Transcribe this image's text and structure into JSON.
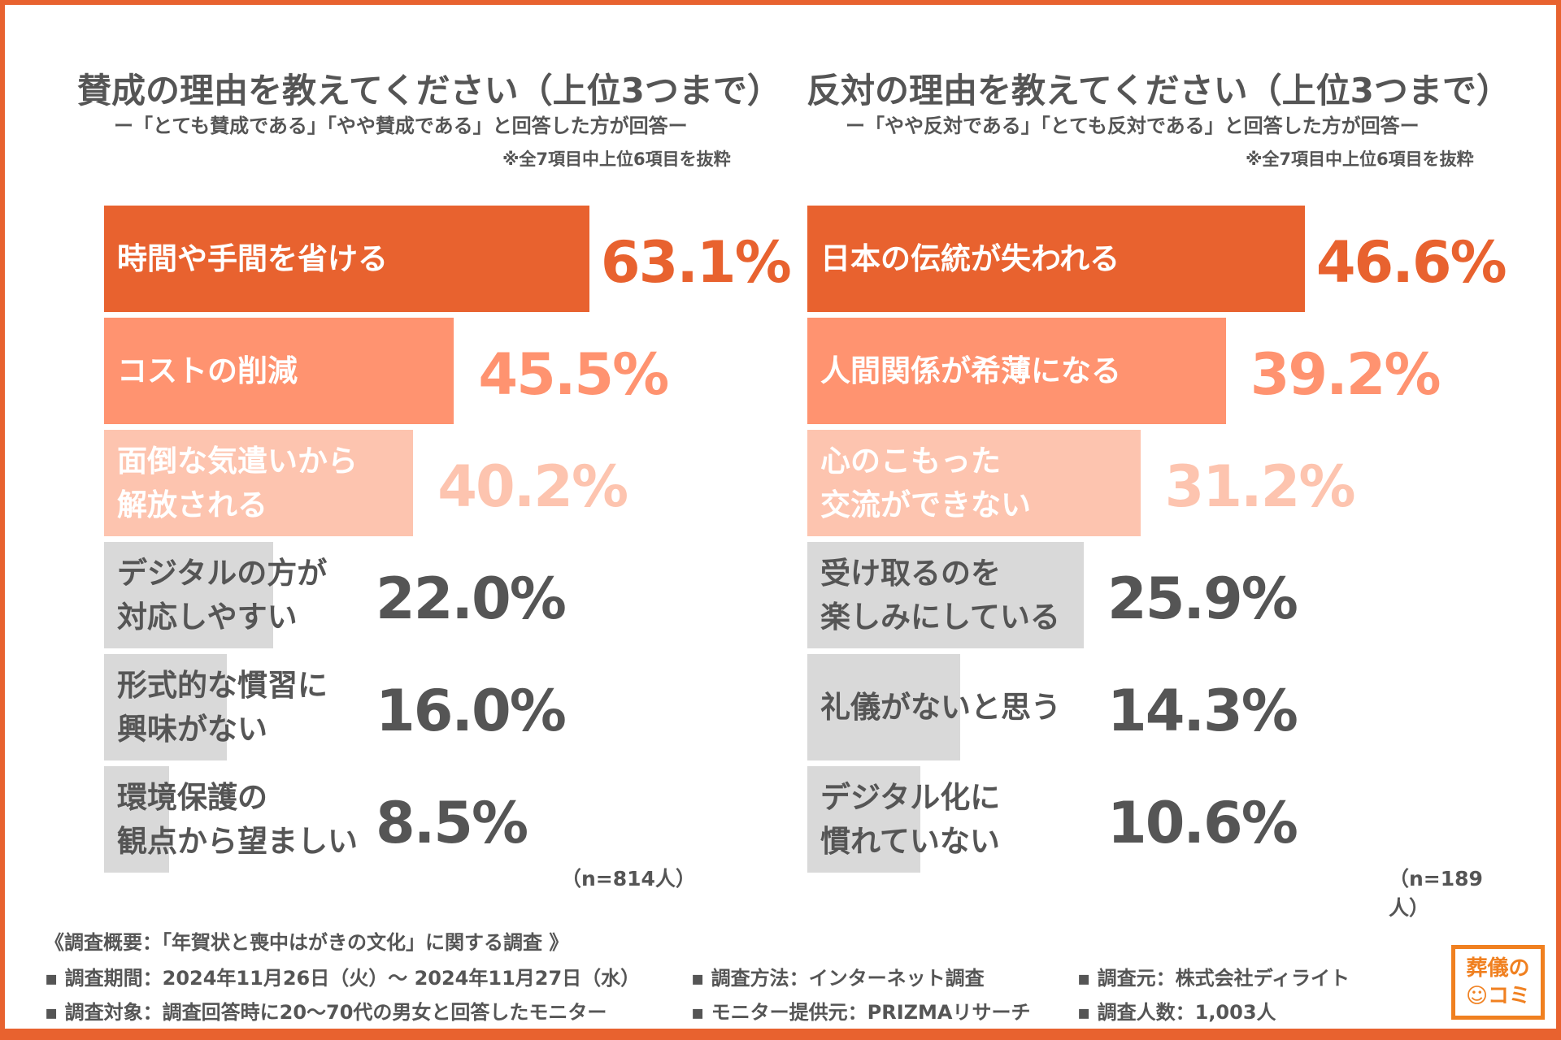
{
  "chart_data": [
    {
      "type": "bar",
      "orientation": "horizontal",
      "title": "賛成の理由を教えてください（上位3つまで）",
      "subtitle": "ー「とても賛成である」「やや賛成である」と回答した方が回答ー",
      "note": "※全7項目中上位6項目を抜粋",
      "sample": "（n=814人）",
      "unit": "%",
      "categories": [
        "時間や手間を省ける",
        "コストの削減",
        "面倒な気遣いから\n解放される",
        "デジタルの方が\n対応しやすい",
        "形式的な慣習に\n興味がない",
        "環境保護の\n観点から望ましい"
      ],
      "values": [
        63.1,
        45.5,
        40.2,
        22.0,
        16.0,
        8.5
      ],
      "labels": [
        "63.1%",
        "45.5%",
        "40.2%",
        "22.0%",
        "16.0%",
        "8.5%"
      ]
    },
    {
      "type": "bar",
      "orientation": "horizontal",
      "title": "反対の理由を教えてください（上位3つまで）",
      "subtitle": "ー「やや反対である」「とても反対である」と回答した方が回答ー",
      "note": "※全7項目中上位6項目を抜粋",
      "sample": "（n=189人）",
      "unit": "%",
      "categories": [
        "日本の伝統が失われる",
        "人間関係が希薄になる",
        "心のこもった\n交流ができない",
        "受け取るのを\n楽しみにしている",
        "礼儀がないと思う",
        "デジタル化に\n慣れていない"
      ],
      "values": [
        46.6,
        39.2,
        31.2,
        25.9,
        14.3,
        10.6
      ],
      "labels": [
        "46.6%",
        "39.2%",
        "31.2%",
        "25.9%",
        "14.3%",
        "10.6%"
      ]
    }
  ],
  "colors": {
    "rank1": "#E8622F",
    "rank2": "#FF9370",
    "rank3": "#FDC4AF",
    "other": "#D9D9D9",
    "frame": "#E8622F",
    "other_text": "#555555"
  },
  "footer": {
    "heading": "《調査概要：「年賀状と喪中はがきの文化」に関する調査 》",
    "items": [
      "▪ 調査期間：2024年11月26日（火）～ 2024年11月27日（水）",
      "▪ 調査方法：インターネット調査",
      "▪ 調査元：株式会社ディライト",
      "▪ 調査対象：調査回答時に20～70代の男女と回答したモニター",
      "▪ モニター提供元：PRIZMAリサーチ",
      "▪ 調査人数：1,003人"
    ]
  },
  "logo": {
    "text": "葬儀のコミ"
  }
}
